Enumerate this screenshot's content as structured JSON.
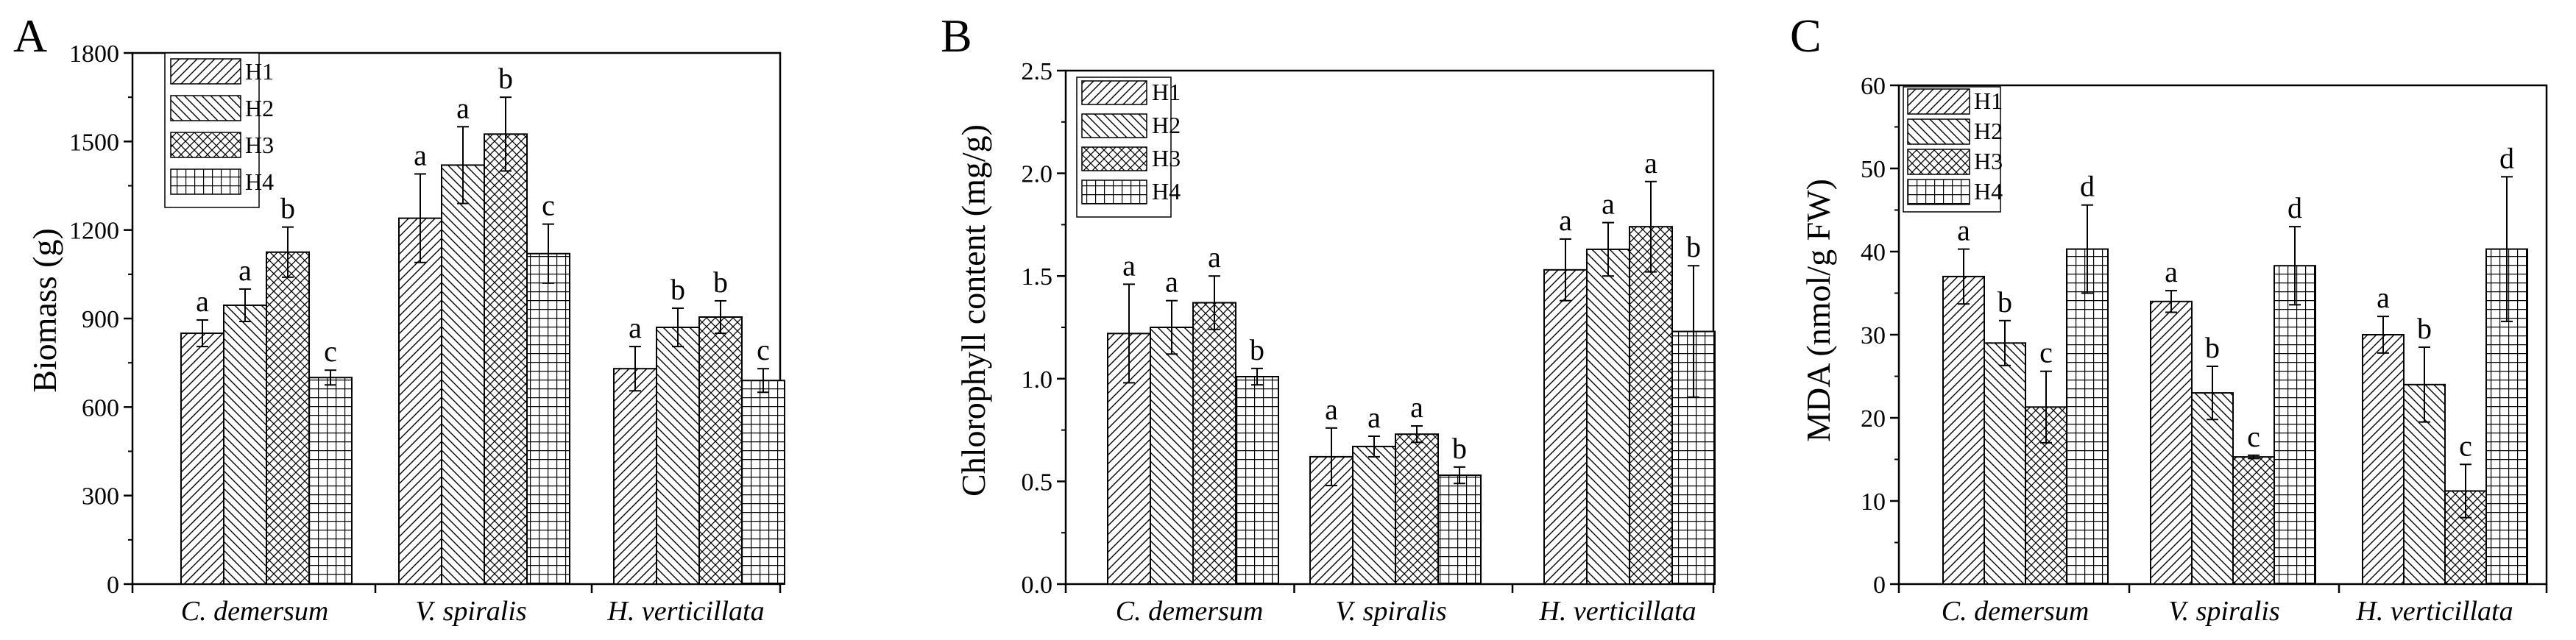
{
  "patterns": {
    "H1": "diag-right",
    "H2": "diag-left",
    "H3": "crosshatch",
    "H4": "grid"
  },
  "chart_data": [
    {
      "type": "bar",
      "panel": "A",
      "ylabel": "Biomass (g)",
      "ylim": [
        0,
        1800
      ],
      "yticks": [
        0,
        300,
        600,
        900,
        1200,
        1500,
        1800
      ],
      "yticklabels": [
        "0",
        "300",
        "600",
        "900",
        "1200",
        "1500",
        "1800"
      ],
      "categories": [
        "C. demersum",
        "V. spiralis",
        "H. verticillata"
      ],
      "series": [
        {
          "name": "H1",
          "values": [
            850,
            1240,
            730
          ],
          "errors": [
            45,
            150,
            75
          ],
          "letters": [
            "a",
            "a",
            "a"
          ]
        },
        {
          "name": "H2",
          "values": [
            945,
            1420,
            870
          ],
          "errors": [
            55,
            130,
            65
          ],
          "letters": [
            "a",
            "a",
            "b"
          ]
        },
        {
          "name": "H3",
          "values": [
            1125,
            1525,
            905
          ],
          "errors": [
            85,
            125,
            55
          ],
          "letters": [
            "b",
            "b",
            "b"
          ]
        },
        {
          "name": "H4",
          "values": [
            700,
            1120,
            690
          ],
          "errors": [
            25,
            100,
            40
          ],
          "letters": [
            "c",
            "c",
            "c"
          ]
        }
      ],
      "legend": "top-left"
    },
    {
      "type": "bar",
      "panel": "B",
      "ylabel": "Chlorophyll content (mg/g)",
      "ylim": [
        0,
        2.5
      ],
      "yticks": [
        0,
        0.5,
        1.0,
        1.5,
        2.0,
        2.5
      ],
      "yticklabels": [
        "0.0",
        "0.5",
        "1.0",
        "1.5",
        "2.0",
        "2.5"
      ],
      "categories": [
        "C. demersum",
        "V. spiralis",
        "H. verticillata"
      ],
      "series": [
        {
          "name": "H1",
          "values": [
            1.22,
            0.62,
            1.53
          ],
          "errors": [
            0.24,
            0.14,
            0.15
          ],
          "letters": [
            "a",
            "a",
            "a"
          ]
        },
        {
          "name": "H2",
          "values": [
            1.25,
            0.67,
            1.63
          ],
          "errors": [
            0.13,
            0.05,
            0.13
          ],
          "letters": [
            "a",
            "a",
            "a"
          ]
        },
        {
          "name": "H3",
          "values": [
            1.37,
            0.73,
            1.74
          ],
          "errors": [
            0.13,
            0.04,
            0.22
          ],
          "letters": [
            "a",
            "a",
            "a"
          ]
        },
        {
          "name": "H4",
          "values": [
            1.01,
            0.53,
            1.23
          ],
          "errors": [
            0.04,
            0.04,
            0.32
          ],
          "letters": [
            "b",
            "b",
            "b"
          ]
        }
      ],
      "legend": "top-left"
    },
    {
      "type": "bar",
      "panel": "C",
      "ylabel": "MDA (nmol/g FW)",
      "ylim": [
        0,
        60
      ],
      "yticks": [
        0,
        10,
        20,
        30,
        40,
        50,
        60
      ],
      "yticklabels": [
        "0",
        "10",
        "20",
        "30",
        "40",
        "50",
        "60"
      ],
      "categories": [
        "C. demersum",
        "V. spiralis",
        "H. verticillata"
      ],
      "series": [
        {
          "name": "H1",
          "values": [
            37,
            34,
            30
          ],
          "errors": [
            3.3,
            1.3,
            2.2
          ],
          "letters": [
            "a",
            "a",
            "a"
          ]
        },
        {
          "name": "H2",
          "values": [
            29,
            23,
            24
          ],
          "errors": [
            2.7,
            3.2,
            4.5
          ],
          "letters": [
            "b",
            "b",
            "b"
          ]
        },
        {
          "name": "H3",
          "values": [
            21.3,
            15.3,
            11.2
          ],
          "errors": [
            4.3,
            0.2,
            3.2
          ],
          "letters": [
            "c",
            "c",
            "c"
          ]
        },
        {
          "name": "H4",
          "values": [
            40.3,
            38.3,
            40.3
          ],
          "errors": [
            5.3,
            4.7,
            8.7
          ],
          "letters": [
            "d",
            "d",
            "d"
          ]
        }
      ],
      "legend": "top-left"
    }
  ]
}
